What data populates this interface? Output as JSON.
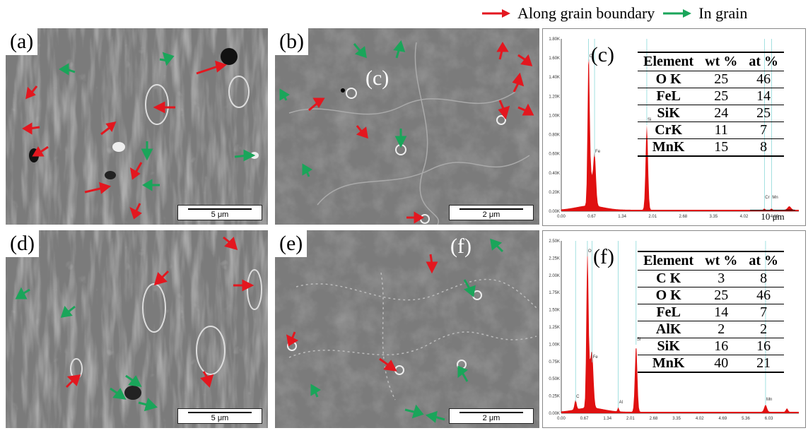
{
  "legend": {
    "red_label": "Along grain boundary",
    "green_label": "In grain",
    "red_color": "#e3171f",
    "green_color": "#1aa55a"
  },
  "panels": {
    "a": {
      "label": "(a)",
      "scale": "5 μm"
    },
    "b": {
      "label": "(b)",
      "scale": "2 μm",
      "marker": "(c)"
    },
    "d": {
      "label": "(d)",
      "scale": "5 μm"
    },
    "e": {
      "label": "(e)",
      "scale": "2 μm",
      "marker": "(f)"
    }
  },
  "eds_c": {
    "label": "(c)",
    "headers": [
      "Element",
      "wt %",
      "at %"
    ],
    "rows": [
      [
        "O K",
        "25",
        "46"
      ],
      [
        "FeL",
        "25",
        "14"
      ],
      [
        "SiK",
        "24",
        "25"
      ],
      [
        "CrK",
        "11",
        "7"
      ],
      [
        "MnK",
        "15",
        "8"
      ]
    ],
    "y_ticks": [
      "1.80K",
      "1.60K",
      "1.40K",
      "1.20K",
      "1.00K",
      "0.80K",
      "0.60K",
      "0.40K",
      "0.20K",
      "0.00K"
    ],
    "x_ticks": [
      "0.00",
      "0.67",
      "1.34",
      "2.01",
      "2.68",
      "3.35",
      "4.02",
      "4.69"
    ],
    "peak_labels": [
      "O",
      "Fe",
      "Si",
      "Cr",
      "Mn"
    ],
    "inset_scale": "10 μm"
  },
  "eds_f": {
    "label": "(f)",
    "headers": [
      "Element",
      "wt %",
      "at %"
    ],
    "rows": [
      [
        "C K",
        "3",
        "8"
      ],
      [
        "O K",
        "25",
        "46"
      ],
      [
        "FeL",
        "14",
        "7"
      ],
      [
        "AlK",
        "2",
        "2"
      ],
      [
        "SiK",
        "16",
        "16"
      ],
      [
        "MnK",
        "40",
        "21"
      ]
    ],
    "y_ticks": [
      "2.50K",
      "2.25K",
      "2.00K",
      "1.75K",
      "1.50K",
      "1.25K",
      "1.00K",
      "0.75K",
      "0.50K",
      "0.25K",
      "0.00K"
    ],
    "x_ticks": [
      "0.00",
      "0.67",
      "1.34",
      "2.01",
      "2.68",
      "3.35",
      "4.02",
      "4.69",
      "5.36",
      "6.03"
    ],
    "peak_labels": [
      "O",
      "C",
      "Fe",
      "Al",
      "Si",
      "Mn"
    ]
  }
}
